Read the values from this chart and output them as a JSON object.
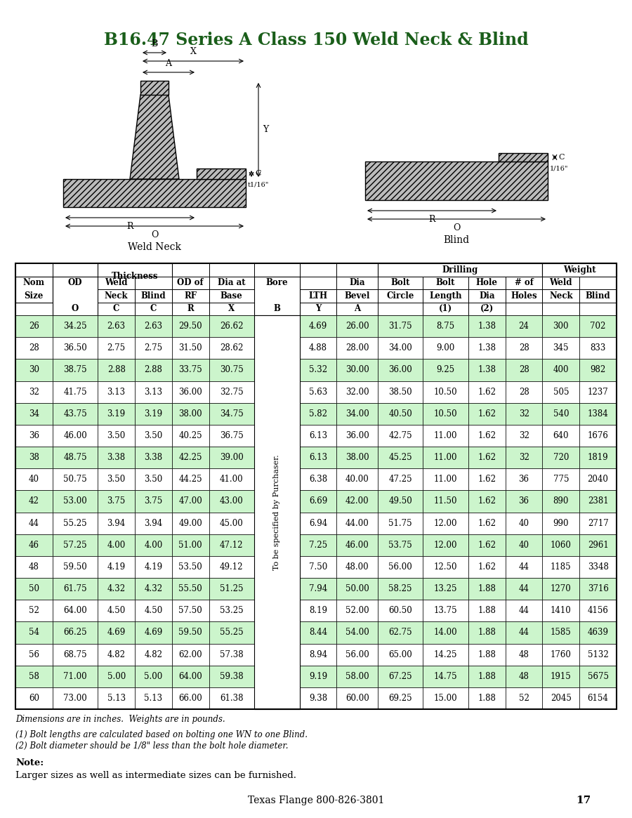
{
  "title": "B16.47 Series A Class 150 Weld Neck & Blind",
  "title_color": "#1a5e1a",
  "bg_color": "#ffffff",
  "data": [
    [
      "26",
      "34.25",
      "2.63",
      "2.63",
      "29.50",
      "26.62",
      "",
      "4.69",
      "26.00",
      "31.75",
      "8.75",
      "1.38",
      "24",
      "300",
      "702"
    ],
    [
      "28",
      "36.50",
      "2.75",
      "2.75",
      "31.50",
      "28.62",
      "",
      "4.88",
      "28.00",
      "34.00",
      "9.00",
      "1.38",
      "28",
      "345",
      "833"
    ],
    [
      "30",
      "38.75",
      "2.88",
      "2.88",
      "33.75",
      "30.75",
      "",
      "5.32",
      "30.00",
      "36.00",
      "9.25",
      "1.38",
      "28",
      "400",
      "982"
    ],
    [
      "32",
      "41.75",
      "3.13",
      "3.13",
      "36.00",
      "32.75",
      "",
      "5.63",
      "32.00",
      "38.50",
      "10.50",
      "1.62",
      "28",
      "505",
      "1237"
    ],
    [
      "34",
      "43.75",
      "3.19",
      "3.19",
      "38.00",
      "34.75",
      "",
      "5.82",
      "34.00",
      "40.50",
      "10.50",
      "1.62",
      "32",
      "540",
      "1384"
    ],
    [
      "36",
      "46.00",
      "3.50",
      "3.50",
      "40.25",
      "36.75",
      "",
      "6.13",
      "36.00",
      "42.75",
      "11.00",
      "1.62",
      "32",
      "640",
      "1676"
    ],
    [
      "38",
      "48.75",
      "3.38",
      "3.38",
      "42.25",
      "39.00",
      "",
      "6.13",
      "38.00",
      "45.25",
      "11.00",
      "1.62",
      "32",
      "720",
      "1819"
    ],
    [
      "40",
      "50.75",
      "3.50",
      "3.50",
      "44.25",
      "41.00",
      "",
      "6.38",
      "40.00",
      "47.25",
      "11.00",
      "1.62",
      "36",
      "775",
      "2040"
    ],
    [
      "42",
      "53.00",
      "3.75",
      "3.75",
      "47.00",
      "43.00",
      "",
      "6.69",
      "42.00",
      "49.50",
      "11.50",
      "1.62",
      "36",
      "890",
      "2381"
    ],
    [
      "44",
      "55.25",
      "3.94",
      "3.94",
      "49.00",
      "45.00",
      "",
      "6.94",
      "44.00",
      "51.75",
      "12.00",
      "1.62",
      "40",
      "990",
      "2717"
    ],
    [
      "46",
      "57.25",
      "4.00",
      "4.00",
      "51.00",
      "47.12",
      "",
      "7.25",
      "46.00",
      "53.75",
      "12.00",
      "1.62",
      "40",
      "1060",
      "2961"
    ],
    [
      "48",
      "59.50",
      "4.19",
      "4.19",
      "53.50",
      "49.12",
      "",
      "7.50",
      "48.00",
      "56.00",
      "12.50",
      "1.62",
      "44",
      "1185",
      "3348"
    ],
    [
      "50",
      "61.75",
      "4.32",
      "4.32",
      "55.50",
      "51.25",
      "",
      "7.94",
      "50.00",
      "58.25",
      "13.25",
      "1.88",
      "44",
      "1270",
      "3716"
    ],
    [
      "52",
      "64.00",
      "4.50",
      "4.50",
      "57.50",
      "53.25",
      "",
      "8.19",
      "52.00",
      "60.50",
      "13.75",
      "1.88",
      "44",
      "1410",
      "4156"
    ],
    [
      "54",
      "66.25",
      "4.69",
      "4.69",
      "59.50",
      "55.25",
      "",
      "8.44",
      "54.00",
      "62.75",
      "14.00",
      "1.88",
      "44",
      "1585",
      "4639"
    ],
    [
      "56",
      "68.75",
      "4.82",
      "4.82",
      "62.00",
      "57.38",
      "",
      "8.94",
      "56.00",
      "65.00",
      "14.25",
      "1.88",
      "48",
      "1760",
      "5132"
    ],
    [
      "58",
      "71.00",
      "5.00",
      "5.00",
      "64.00",
      "59.38",
      "",
      "9.19",
      "58.00",
      "67.25",
      "14.75",
      "1.88",
      "48",
      "1915",
      "5675"
    ],
    [
      "60",
      "73.00",
      "5.13",
      "5.13",
      "66.00",
      "61.38",
      "",
      "9.38",
      "60.00",
      "69.25",
      "15.00",
      "1.88",
      "52",
      "2045",
      "6154"
    ]
  ],
  "row_colors_even": "#ccf5cc",
  "row_colors_odd": "#ffffff",
  "footer_text": "Dimensions are in inches.  Weights are in pounds.",
  "note1": "(1) Bolt lengths are calculated based on bolting one WN to one Blind.",
  "note2": "(2) Bolt diameter should be 1/8\" less than the bolt hole diameter.",
  "note_bold": "Note:",
  "note_body": "Larger sizes as well as intermediate sizes can be furnished.",
  "footer_bottom": "Texas Flange 800-826-3801",
  "page_num": "17"
}
